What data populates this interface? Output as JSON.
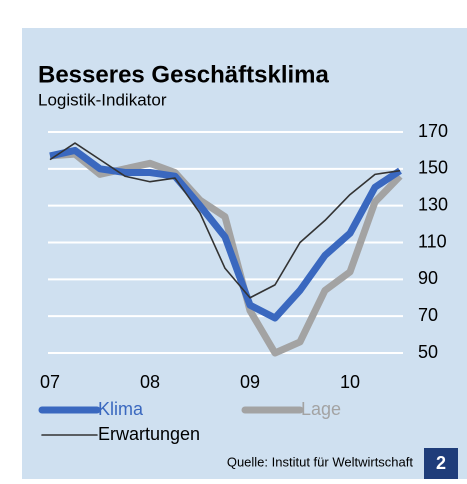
{
  "chart_data": {
    "type": "line",
    "title": "Besseres Geschäftsklima",
    "subtitle": "Logistik-Indikator",
    "source": "Quelle: Institut für Weltwirtschaft",
    "badge": "2",
    "x": [
      2007.0,
      2007.25,
      2007.5,
      2007.75,
      2008.0,
      2008.25,
      2008.5,
      2008.75,
      2009.0,
      2009.25,
      2009.5,
      2009.75,
      2010.0,
      2010.25,
      2010.5
    ],
    "series": [
      {
        "name": "Klima",
        "color": "#3a68bf",
        "width": 7,
        "values": [
          157,
          160,
          150,
          148,
          148,
          146,
          130,
          113,
          76,
          69,
          84,
          103,
          115,
          140,
          149
        ]
      },
      {
        "name": "Lage",
        "color": "#a3a3a3",
        "width": 7,
        "values": [
          157,
          158,
          147,
          150,
          153,
          148,
          133,
          124,
          73,
          50,
          56,
          84,
          94,
          132,
          146
        ]
      },
      {
        "name": "Erwartungen",
        "color": "#333333",
        "width": 1.6,
        "values": [
          155,
          164,
          155,
          146,
          143,
          145,
          126,
          96,
          80,
          87,
          110,
          122,
          136,
          147,
          149
        ]
      }
    ],
    "xlim": [
      2007.0,
      2010.5
    ],
    "xticks": [
      {
        "value": 2007,
        "label": "07"
      },
      {
        "value": 2008,
        "label": "08"
      },
      {
        "value": 2009,
        "label": "09"
      },
      {
        "value": 2010,
        "label": "10"
      }
    ],
    "ylim": [
      50,
      170
    ],
    "yticks": [
      50,
      70,
      90,
      110,
      130,
      150,
      170
    ],
    "grid": true
  }
}
